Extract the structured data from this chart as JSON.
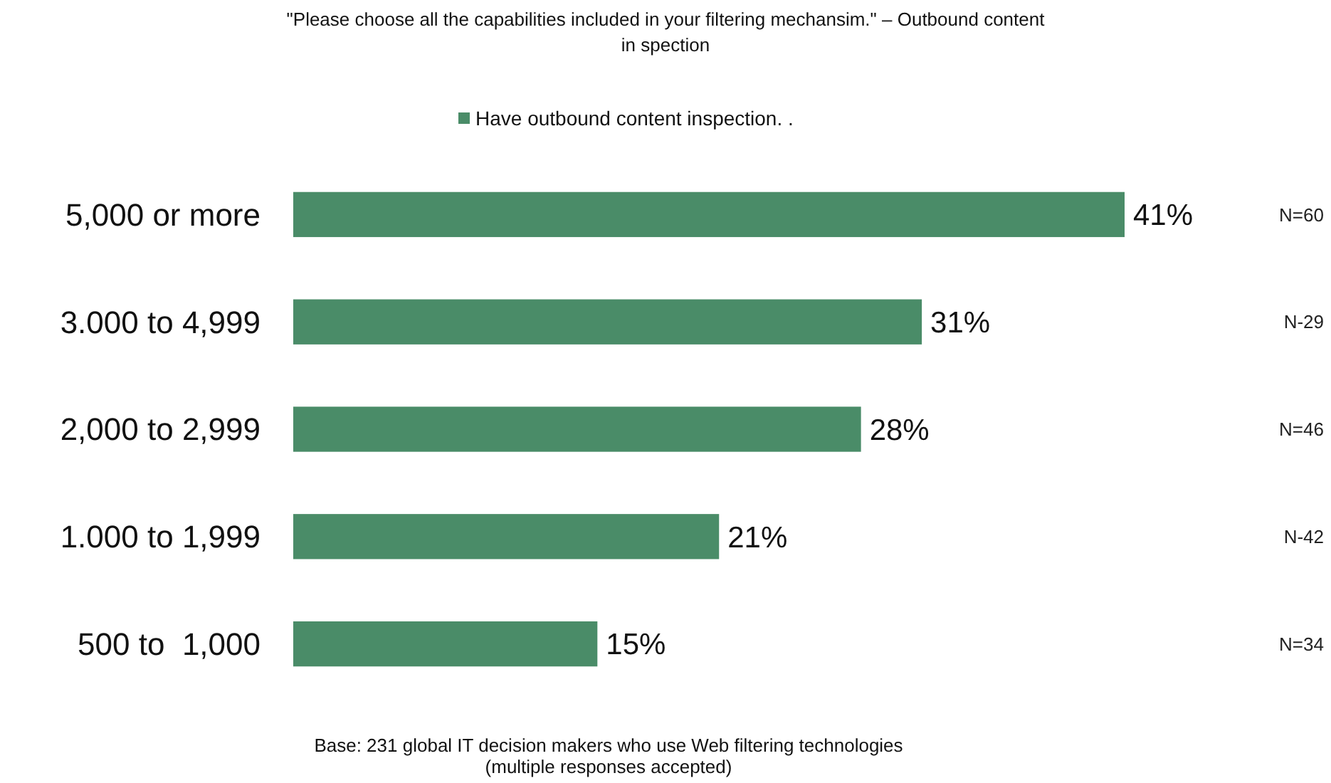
{
  "chart_data": {
    "type": "bar",
    "orientation": "horizontal",
    "title": "\"Please choose all the capabilities included in your filtering mechansim.\" – Outbound content in spection",
    "categories": [
      "5,000 or more",
      "3.000 to 4,999",
      "2,000 to 2,999",
      "1.000 to 1,999",
      "500 to  1,000"
    ],
    "series": [
      {
        "name": "Have outbound content inspection. .",
        "color": "#4a8c68",
        "values": [
          41,
          31,
          28,
          21,
          15
        ],
        "value_labels": [
          "41%",
          "31%",
          "28%",
          "21%",
          "15%"
        ]
      }
    ],
    "legend": "top",
    "annotations": [
      "N=60",
      "N-29",
      "N=46",
      "N-42",
      "N=34",
      "Base: 231 global IT decision makers who use Web filtering technologies (multiple responses accepted)"
    ]
  }
}
